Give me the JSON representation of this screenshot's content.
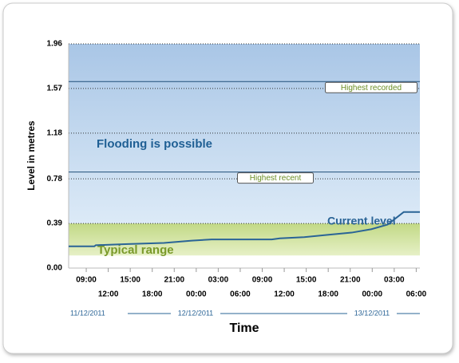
{
  "chart_data": {
    "type": "line",
    "ylabel": "Level in metres",
    "xlabel": "Time",
    "ylim": [
      0,
      1.96
    ],
    "yticks": [
      {
        "value": 0,
        "label": "0.00"
      },
      0.39,
      0.78,
      1.18,
      1.57,
      1.96
    ],
    "xlim": [
      6.6,
      54.5
    ],
    "xticks": [
      {
        "value": 9,
        "label": "09:00"
      },
      {
        "value": 12,
        "label": "12:00"
      },
      {
        "value": 15,
        "label": "15:00"
      },
      {
        "value": 18,
        "label": "18:00"
      },
      {
        "value": 21,
        "label": "21:00"
      },
      {
        "value": 24,
        "label": "00:00"
      },
      {
        "value": 27,
        "label": "03:00"
      },
      {
        "value": 30,
        "label": "06:00"
      },
      {
        "value": 33,
        "label": "09:00"
      },
      {
        "value": 36,
        "label": "12:00"
      },
      {
        "value": 39,
        "label": "15:00"
      },
      {
        "value": 42,
        "label": "18:00"
      },
      {
        "value": 45,
        "label": "21:00"
      },
      {
        "value": 48,
        "label": "00:00"
      },
      {
        "value": 51,
        "label": "03:00"
      },
      {
        "value": 54,
        "label": "06:00"
      }
    ],
    "dates": [
      "11/12/2011",
      "12/12/2011",
      "13/12/2011"
    ],
    "grid": true,
    "zones": [
      {
        "name": "Typical range",
        "from": 0.11,
        "to": 0.39,
        "color": "#c6dc8c"
      },
      {
        "name": "Flooding is possible",
        "from": 0.39,
        "to": 1.96,
        "color": "#a9c6e6"
      }
    ],
    "thresholds": [
      {
        "name": "Highest recorded",
        "value": 1.63
      },
      {
        "name": "Highest recent",
        "value": 0.84
      }
    ],
    "series": [
      {
        "name": "Current level",
        "color": "#2a6496",
        "x": [
          6.6,
          10.1,
          10.3,
          14.7,
          19.6,
          23.4,
          26.1,
          29.4,
          34.3,
          35.4,
          38.7,
          41.9,
          45.2,
          47.9,
          50.1,
          51.7,
          52.3,
          54.5
        ],
        "values": [
          0.19,
          0.19,
          0.2,
          0.21,
          0.22,
          0.24,
          0.25,
          0.25,
          0.25,
          0.26,
          0.27,
          0.29,
          0.31,
          0.34,
          0.38,
          0.46,
          0.49,
          0.49
        ]
      }
    ]
  }
}
